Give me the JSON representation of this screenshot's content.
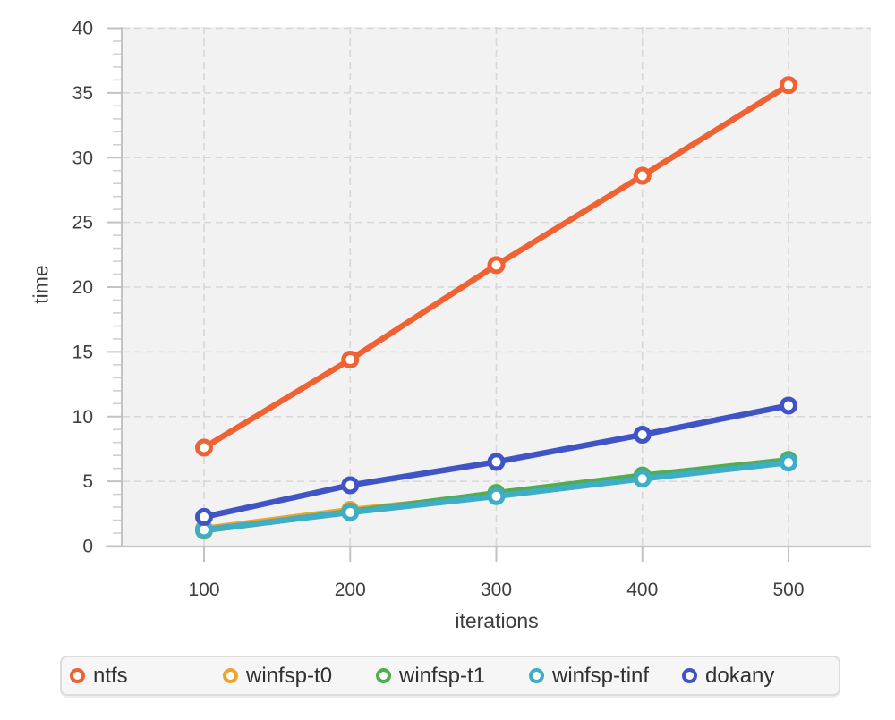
{
  "chart_data": {
    "type": "line",
    "title": "",
    "xlabel": "iterations",
    "ylabel": "time",
    "x": [
      100,
      200,
      300,
      400,
      500
    ],
    "xticks": [
      100,
      200,
      300,
      400,
      500
    ],
    "yticks": [
      0,
      5,
      10,
      15,
      20,
      25,
      30,
      35,
      40
    ],
    "y_minor_step": 1,
    "xlim": [
      44,
      556
    ],
    "ylim": [
      0,
      40
    ],
    "grid": "dashed",
    "legend_position": "bottom",
    "marker": "open-circle",
    "series": [
      {
        "name": "ntfs",
        "color": "#ee6233",
        "values": [
          7.6,
          14.4,
          21.7,
          28.6,
          35.6
        ]
      },
      {
        "name": "winfsp-t0",
        "color": "#f0a42c",
        "values": [
          1.35,
          2.8,
          3.95,
          5.4,
          6.55
        ]
      },
      {
        "name": "winfsp-t1",
        "color": "#52ad4e",
        "values": [
          1.2,
          2.65,
          4.1,
          5.45,
          6.65
        ]
      },
      {
        "name": "winfsp-tinf",
        "color": "#3eadc6",
        "values": [
          1.25,
          2.6,
          3.85,
          5.2,
          6.45
        ]
      },
      {
        "name": "dokany",
        "color": "#4154c6",
        "values": [
          2.25,
          4.7,
          6.5,
          8.6,
          10.85
        ]
      }
    ],
    "style_colors": {
      "plot_background": "#f2f2f2",
      "gridline": "#d7d7d7",
      "axis_line": "#c3c3c3",
      "minor_tick": "#cfcfcf",
      "tick_text": "#3f3f3f",
      "marker_fill": "#ffffff"
    }
  }
}
